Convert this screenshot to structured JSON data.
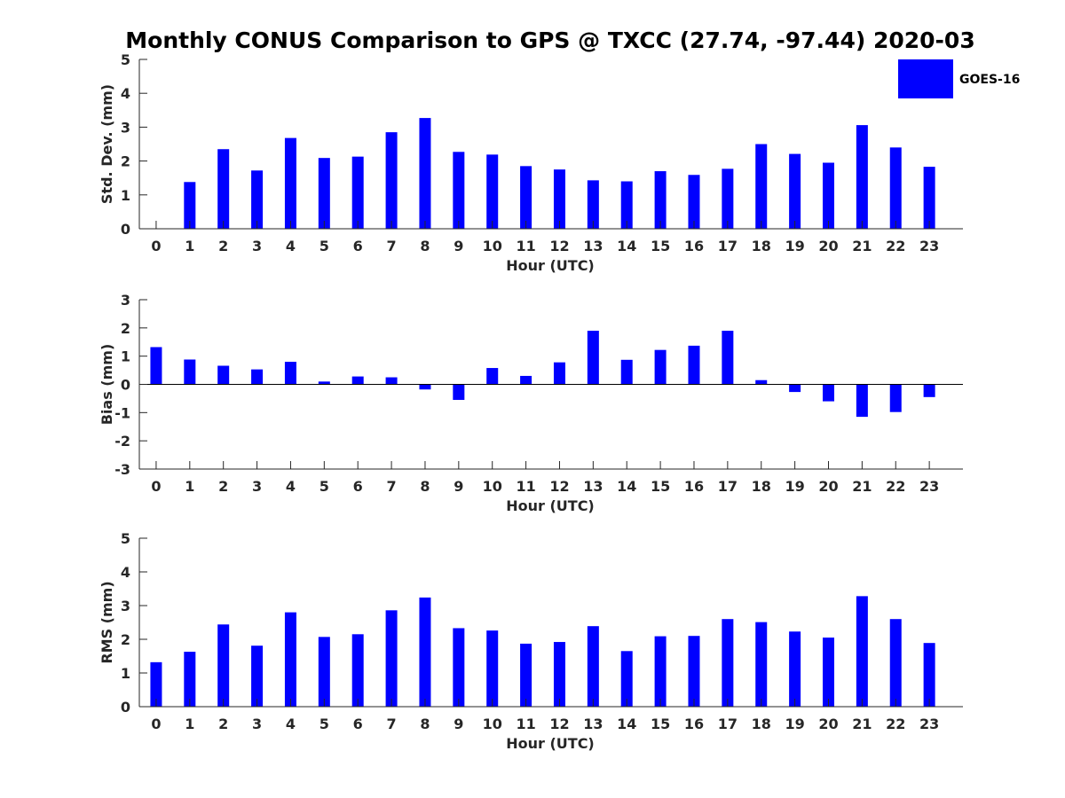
{
  "chart_data": [
    {
      "type": "bar",
      "title": "Monthly CONUS Comparison to GPS @ TXCC (27.74, -97.44) 2020-03",
      "xlabel": "Hour (UTC)",
      "ylabel": "Std. Dev. (mm)",
      "ylim": [
        0,
        5
      ],
      "yticks": [
        0,
        1,
        2,
        3,
        4,
        5
      ],
      "categories": [
        "0",
        "1",
        "2",
        "3",
        "4",
        "5",
        "6",
        "7",
        "8",
        "9",
        "10",
        "11",
        "12",
        "13",
        "14",
        "15",
        "16",
        "17",
        "18",
        "19",
        "20",
        "21",
        "22",
        "23"
      ],
      "series": [
        {
          "name": "GOES-16",
          "color": "#0000ff",
          "values": [
            0,
            1.38,
            2.35,
            1.72,
            2.68,
            2.09,
            2.13,
            2.85,
            3.27,
            2.27,
            2.19,
            1.85,
            1.75,
            1.43,
            1.4,
            1.7,
            1.59,
            1.77,
            2.5,
            2.21,
            1.95,
            3.06,
            2.4,
            1.83
          ]
        }
      ],
      "legend": {
        "position": "top-right",
        "entries": [
          "GOES-16"
        ]
      }
    },
    {
      "type": "bar",
      "xlabel": "Hour (UTC)",
      "ylabel": "Bias (mm)",
      "ylim": [
        -3,
        3
      ],
      "yticks": [
        -3,
        -2,
        -1,
        0,
        1,
        2,
        3
      ],
      "categories": [
        "0",
        "1",
        "2",
        "3",
        "4",
        "5",
        "6",
        "7",
        "8",
        "9",
        "10",
        "11",
        "12",
        "13",
        "14",
        "15",
        "16",
        "17",
        "18",
        "19",
        "20",
        "21",
        "22",
        "23"
      ],
      "series": [
        {
          "name": "GOES-16",
          "color": "#0000ff",
          "values": [
            1.32,
            0.88,
            0.66,
            0.53,
            0.8,
            0.1,
            0.28,
            0.25,
            -0.18,
            -0.55,
            0.58,
            0.3,
            0.78,
            1.9,
            0.87,
            1.22,
            1.37,
            1.9,
            0.15,
            -0.27,
            -0.6,
            -1.15,
            -0.98,
            -0.45
          ]
        }
      ]
    },
    {
      "type": "bar",
      "xlabel": "Hour (UTC)",
      "ylabel": "RMS (mm)",
      "ylim": [
        0,
        5
      ],
      "yticks": [
        0,
        1,
        2,
        3,
        4,
        5
      ],
      "categories": [
        "0",
        "1",
        "2",
        "3",
        "4",
        "5",
        "6",
        "7",
        "8",
        "9",
        "10",
        "11",
        "12",
        "13",
        "14",
        "15",
        "16",
        "17",
        "18",
        "19",
        "20",
        "21",
        "22",
        "23"
      ],
      "series": [
        {
          "name": "GOES-16",
          "color": "#0000ff",
          "values": [
            1.32,
            1.63,
            2.44,
            1.81,
            2.8,
            2.07,
            2.15,
            2.86,
            3.24,
            2.33,
            2.26,
            1.87,
            1.92,
            2.39,
            1.65,
            2.09,
            2.1,
            2.6,
            2.51,
            2.23,
            2.05,
            3.28,
            2.6,
            1.89
          ]
        }
      ]
    }
  ]
}
